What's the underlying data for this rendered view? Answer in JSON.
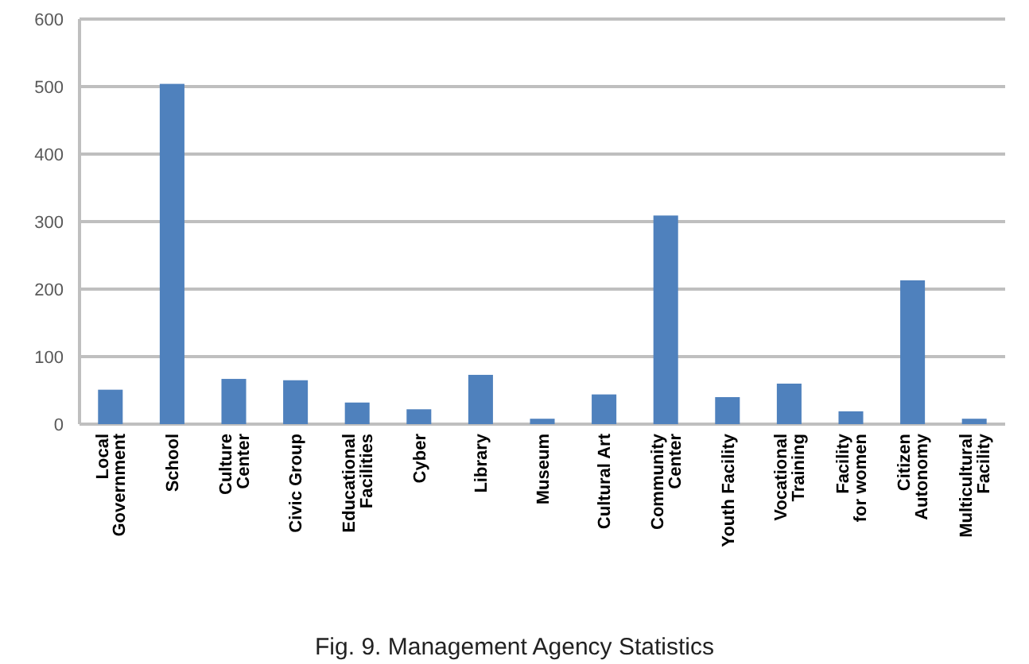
{
  "chart_data": {
    "type": "bar",
    "categories": [
      "Local\nGovernment",
      "School",
      "Culture\nCenter",
      "Civic Group",
      "Educational\nFacilities",
      "Cyber",
      "Library",
      "Museum",
      "Cultural Art",
      "Community\nCenter",
      "Youth Facility",
      "Vocational\nTraining",
      "Facility\nfor women",
      "Citizen\nAutonomy",
      "Multicultural\nFacility"
    ],
    "values": [
      51,
      504,
      67,
      65,
      32,
      22,
      73,
      8,
      44,
      309,
      40,
      60,
      19,
      213,
      8
    ],
    "color": "#4f81bd",
    "ylim": [
      0,
      600
    ],
    "yticks": [
      0,
      100,
      200,
      300,
      400,
      500,
      600
    ],
    "grid": "y",
    "annotations": [
      "Fig. 9. Management Agency Statistics"
    ]
  }
}
